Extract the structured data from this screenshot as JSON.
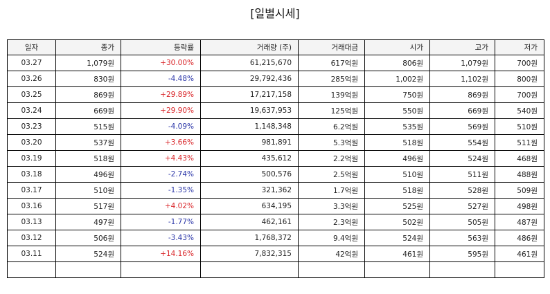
{
  "title": "[일별시세]",
  "columns": [
    "일자",
    "종가",
    "등락률",
    "거래량 (주)",
    "거래대금",
    "시가",
    "고가",
    "저가"
  ],
  "rows": [
    {
      "date": "03.27",
      "close": "1,079원",
      "change": "+30.00%",
      "dir": "up",
      "volume": "61,215,670",
      "amount": "617억원",
      "open": "806원",
      "high": "1,079원",
      "low": "700원"
    },
    {
      "date": "03.26",
      "close": "830원",
      "change": "-4.48%",
      "dir": "down",
      "volume": "29,792,436",
      "amount": "285억원",
      "open": "1,002원",
      "high": "1,102원",
      "low": "800원"
    },
    {
      "date": "03.25",
      "close": "869원",
      "change": "+29.89%",
      "dir": "up",
      "volume": "17,217,158",
      "amount": "139억원",
      "open": "750원",
      "high": "869원",
      "low": "700원"
    },
    {
      "date": "03.24",
      "close": "669원",
      "change": "+29.90%",
      "dir": "up",
      "volume": "19,637,953",
      "amount": "125억원",
      "open": "550원",
      "high": "669원",
      "low": "540원"
    },
    {
      "date": "03.23",
      "close": "515원",
      "change": "-4.09%",
      "dir": "down",
      "volume": "1,148,348",
      "amount": "6.2억원",
      "open": "535원",
      "high": "569원",
      "low": "510원"
    },
    {
      "date": "03.20",
      "close": "537원",
      "change": "+3.66%",
      "dir": "up",
      "volume": "981,891",
      "amount": "5.3억원",
      "open": "518원",
      "high": "554원",
      "low": "511원"
    },
    {
      "date": "03.19",
      "close": "518원",
      "change": "+4.43%",
      "dir": "up",
      "volume": "435,612",
      "amount": "2.2억원",
      "open": "496원",
      "high": "524원",
      "low": "468원"
    },
    {
      "date": "03.18",
      "close": "496원",
      "change": "-2.74%",
      "dir": "down",
      "volume": "500,576",
      "amount": "2.5억원",
      "open": "510원",
      "high": "511원",
      "low": "488원"
    },
    {
      "date": "03.17",
      "close": "510원",
      "change": "-1.35%",
      "dir": "down",
      "volume": "321,362",
      "amount": "1.7억원",
      "open": "518원",
      "high": "528원",
      "low": "509원"
    },
    {
      "date": "03.16",
      "close": "517원",
      "change": "+4.02%",
      "dir": "up",
      "volume": "634,195",
      "amount": "3.3억원",
      "open": "525원",
      "high": "527원",
      "low": "498원"
    },
    {
      "date": "03.13",
      "close": "497원",
      "change": "-1.77%",
      "dir": "down",
      "volume": "462,161",
      "amount": "2.3억원",
      "open": "502원",
      "high": "505원",
      "low": "487원"
    },
    {
      "date": "03.12",
      "close": "506원",
      "change": "-3.43%",
      "dir": "down",
      "volume": "1,768,372",
      "amount": "9.4억원",
      "open": "524원",
      "high": "563원",
      "low": "486원"
    },
    {
      "date": "03.11",
      "close": "524원",
      "change": "+14.16%",
      "dir": "up",
      "volume": "7,832,315",
      "amount": "42억원",
      "open": "461원",
      "high": "595원",
      "low": "461원"
    },
    {
      "date": "",
      "close": "",
      "change": "",
      "dir": "",
      "volume": "",
      "amount": "",
      "open": "",
      "high": "",
      "low": ""
    }
  ]
}
